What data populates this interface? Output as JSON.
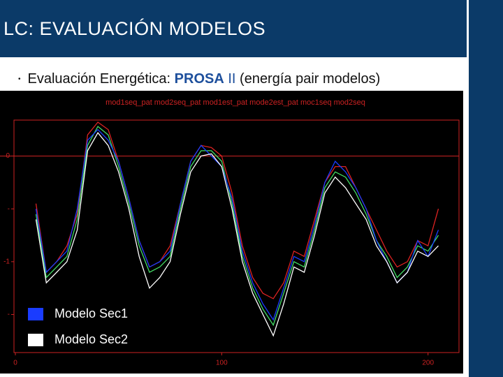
{
  "header": {
    "title": "LC: EVALUACIÓN MODELOS"
  },
  "bullet": {
    "lead": "Evaluación Energética:",
    "highlight": "PROSA",
    "numeral": "II",
    "tail": "(energía pair modelos)"
  },
  "chart_data": {
    "type": "line",
    "subtitle": "mod1seq_pat mod2seq_pat mod1est_pat mode2est_pat moc1seq mod2seq",
    "x": [
      10,
      15,
      20,
      25,
      30,
      35,
      40,
      45,
      50,
      55,
      60,
      65,
      70,
      75,
      80,
      85,
      90,
      95,
      100,
      105,
      110,
      115,
      120,
      125,
      130,
      135,
      140,
      145,
      150,
      155,
      160,
      165,
      170,
      175,
      180,
      185,
      190,
      195,
      200,
      205
    ],
    "series": [
      {
        "color": "#dd2222",
        "values": [
          -0.45,
          -1.1,
          -1.0,
          -0.85,
          -0.55,
          0.2,
          0.32,
          0.25,
          -0.05,
          -0.4,
          -0.8,
          -1.05,
          -1.0,
          -0.85,
          -0.45,
          -0.05,
          0.1,
          0.08,
          0.0,
          -0.35,
          -0.85,
          -1.15,
          -1.3,
          -1.35,
          -1.2,
          -0.9,
          -0.95,
          -0.6,
          -0.25,
          -0.1,
          -0.1,
          -0.3,
          -0.5,
          -0.7,
          -0.9,
          -1.05,
          -1.0,
          -0.8,
          -0.85,
          -0.5
        ]
      },
      {
        "color": "#44dd66",
        "values": [
          -0.55,
          -1.15,
          -1.05,
          -0.95,
          -0.6,
          0.1,
          0.28,
          0.2,
          -0.1,
          -0.45,
          -0.85,
          -1.1,
          -1.05,
          -0.95,
          -0.5,
          -0.1,
          0.05,
          0.05,
          -0.05,
          -0.45,
          -0.95,
          -1.25,
          -1.45,
          -1.6,
          -1.3,
          -1.0,
          -1.05,
          -0.7,
          -0.3,
          -0.15,
          -0.2,
          -0.35,
          -0.55,
          -0.8,
          -0.95,
          -1.15,
          -1.05,
          -0.85,
          -0.9,
          -0.75
        ]
      },
      {
        "name": "Modelo Sec1",
        "color": "#1a3cff",
        "values": [
          -0.5,
          -1.1,
          -1.0,
          -0.9,
          -0.5,
          0.15,
          0.25,
          0.15,
          -0.05,
          -0.4,
          -0.8,
          -1.05,
          -1.0,
          -0.9,
          -0.45,
          -0.05,
          0.1,
          0.0,
          -0.1,
          -0.4,
          -0.9,
          -1.2,
          -1.4,
          -1.55,
          -1.25,
          -0.95,
          -1.0,
          -0.65,
          -0.25,
          -0.05,
          -0.15,
          -0.3,
          -0.5,
          -0.8,
          -1.0,
          -1.2,
          -1.1,
          -0.8,
          -0.95,
          -0.7
        ]
      },
      {
        "name": "Modelo Sec2",
        "color": "#ffffff",
        "values": [
          -0.6,
          -1.2,
          -1.1,
          -1.0,
          -0.7,
          0.05,
          0.22,
          0.1,
          -0.15,
          -0.5,
          -0.95,
          -1.25,
          -1.15,
          -1.0,
          -0.55,
          -0.15,
          0.0,
          0.02,
          -0.1,
          -0.5,
          -1.0,
          -1.3,
          -1.5,
          -1.7,
          -1.4,
          -1.05,
          -1.1,
          -0.75,
          -0.35,
          -0.2,
          -0.3,
          -0.45,
          -0.6,
          -0.85,
          -1.0,
          -1.2,
          -1.1,
          -0.9,
          -0.95,
          -0.85
        ]
      }
    ],
    "xlim": [
      0,
      215
    ],
    "xticks": [
      0,
      100,
      200
    ],
    "ylim": [
      -1.86,
      0.34
    ],
    "yticks": [
      0,
      {
        "value": -0.5,
        "label": "-"
      },
      -1,
      {
        "value": -1.5,
        "label": "-"
      }
    ],
    "axis_color": "#cc2222",
    "background": "#000000"
  }
}
